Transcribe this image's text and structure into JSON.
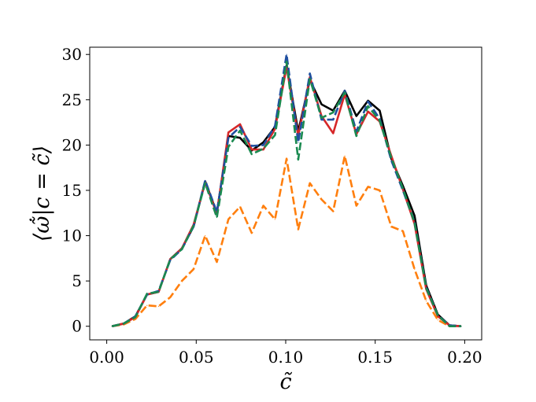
{
  "chart_data": {
    "type": "line",
    "xlabel": "c̃",
    "ylabel": "⟨ω̃̇|c = c̃⟩",
    "xlim": [
      -0.0095,
      0.2095
    ],
    "ylim": [
      -1.5,
      30.8
    ],
    "xticks": [
      0.0,
      0.05,
      0.1,
      0.15,
      0.2
    ],
    "xtick_labels": [
      "0.00",
      "0.05",
      "0.10",
      "0.15",
      "0.20"
    ],
    "yticks": [
      0,
      5,
      10,
      15,
      20,
      25,
      30
    ],
    "ytick_labels": [
      "0",
      "5",
      "10",
      "15",
      "20",
      "25",
      "30"
    ],
    "grid": false,
    "legend": false,
    "series": [
      {
        "color": "#000000",
        "dash": "solid",
        "x": [
          0.003,
          0.0095,
          0.016,
          0.0225,
          0.029,
          0.0355,
          0.042,
          0.0485,
          0.055,
          0.0615,
          0.068,
          0.0745,
          0.081,
          0.0875,
          0.094,
          0.1005,
          0.107,
          0.1135,
          0.12,
          0.1265,
          0.133,
          0.1395,
          0.146,
          0.1525,
          0.159,
          0.1655,
          0.172,
          0.1785,
          0.185,
          0.1915,
          0.198
        ],
        "values": [
          0.0,
          0.3,
          1.1,
          3.5,
          3.8,
          7.4,
          8.6,
          11.0,
          16.0,
          12.5,
          21.0,
          20.8,
          19.4,
          20.3,
          22.0,
          28.8,
          21.5,
          27.2,
          24.5,
          23.8,
          26.0,
          23.2,
          24.9,
          23.8,
          18.5,
          15.5,
          12.2,
          4.5,
          1.3,
          0.1,
          0.0
        ]
      },
      {
        "color": "#ff7f0e",
        "dash": "dashed",
        "x": [
          0.003,
          0.0095,
          0.016,
          0.0225,
          0.029,
          0.0355,
          0.042,
          0.0485,
          0.055,
          0.0615,
          0.068,
          0.0745,
          0.081,
          0.0875,
          0.094,
          0.1005,
          0.107,
          0.1135,
          0.12,
          0.1265,
          0.133,
          0.1395,
          0.146,
          0.1525,
          0.159,
          0.1655,
          0.172,
          0.1785,
          0.185,
          0.1915,
          0.198
        ],
        "values": [
          0.0,
          0.2,
          0.8,
          2.3,
          2.2,
          3.2,
          5.0,
          6.3,
          10.0,
          7.1,
          11.8,
          13.2,
          10.3,
          13.3,
          11.8,
          18.5,
          10.7,
          15.8,
          14.0,
          12.7,
          18.8,
          13.3,
          15.4,
          15.0,
          11.0,
          10.5,
          6.3,
          2.8,
          0.7,
          0.0,
          0.0
        ]
      },
      {
        "color": "#d62728",
        "dash": "solid",
        "x": [
          0.003,
          0.0095,
          0.016,
          0.0225,
          0.029,
          0.0355,
          0.042,
          0.0485,
          0.055,
          0.0615,
          0.068,
          0.0745,
          0.081,
          0.0875,
          0.094,
          0.1005,
          0.107,
          0.1135,
          0.12,
          0.1265,
          0.133,
          0.1395,
          0.146,
          0.1525,
          0.159,
          0.1655,
          0.172,
          0.1785,
          0.185,
          0.1915,
          0.198
        ],
        "values": [
          0.0,
          0.3,
          1.0,
          3.5,
          3.8,
          7.4,
          8.6,
          11.2,
          15.9,
          12.4,
          21.4,
          22.3,
          19.5,
          19.5,
          21.8,
          28.6,
          21.0,
          27.5,
          23.2,
          21.3,
          25.6,
          21.2,
          23.7,
          22.6,
          18.8,
          15.1,
          11.3,
          4.1,
          1.1,
          0.1,
          0.0
        ]
      },
      {
        "color": "#1f4fa0",
        "dash": "dashed",
        "x": [
          0.003,
          0.0095,
          0.016,
          0.0225,
          0.029,
          0.0355,
          0.042,
          0.0485,
          0.055,
          0.0615,
          0.068,
          0.0745,
          0.081,
          0.0875,
          0.094,
          0.1005,
          0.107,
          0.1135,
          0.12,
          0.1265,
          0.133,
          0.1395,
          0.146,
          0.1525,
          0.159,
          0.1655,
          0.172,
          0.1785,
          0.185,
          0.1915,
          0.198
        ],
        "values": [
          0.0,
          0.3,
          1.1,
          3.5,
          3.9,
          7.3,
          8.5,
          11.0,
          16.1,
          12.6,
          20.8,
          22.0,
          19.9,
          20.0,
          22.1,
          30.0,
          20.3,
          27.9,
          22.8,
          22.8,
          26.0,
          21.5,
          24.8,
          22.9,
          18.3,
          15.0,
          11.5,
          4.3,
          1.2,
          0.1,
          0.0
        ]
      },
      {
        "color": "#1a8a50",
        "dash": "dashed",
        "x": [
          0.003,
          0.0095,
          0.016,
          0.0225,
          0.029,
          0.0355,
          0.042,
          0.0485,
          0.055,
          0.0615,
          0.068,
          0.0745,
          0.081,
          0.0875,
          0.094,
          0.1005,
          0.107,
          0.1135,
          0.12,
          0.1265,
          0.133,
          0.1395,
          0.146,
          0.1525,
          0.159,
          0.1655,
          0.172,
          0.1785,
          0.185,
          0.1915,
          0.198
        ],
        "values": [
          0.0,
          0.3,
          1.0,
          3.6,
          3.8,
          7.4,
          8.5,
          11.1,
          15.8,
          12.0,
          19.8,
          21.6,
          19.0,
          19.6,
          21.1,
          29.2,
          18.4,
          27.3,
          23.0,
          23.6,
          25.8,
          21.0,
          24.3,
          22.7,
          18.6,
          15.2,
          11.4,
          4.2,
          1.2,
          0.0,
          0.0
        ]
      }
    ]
  }
}
